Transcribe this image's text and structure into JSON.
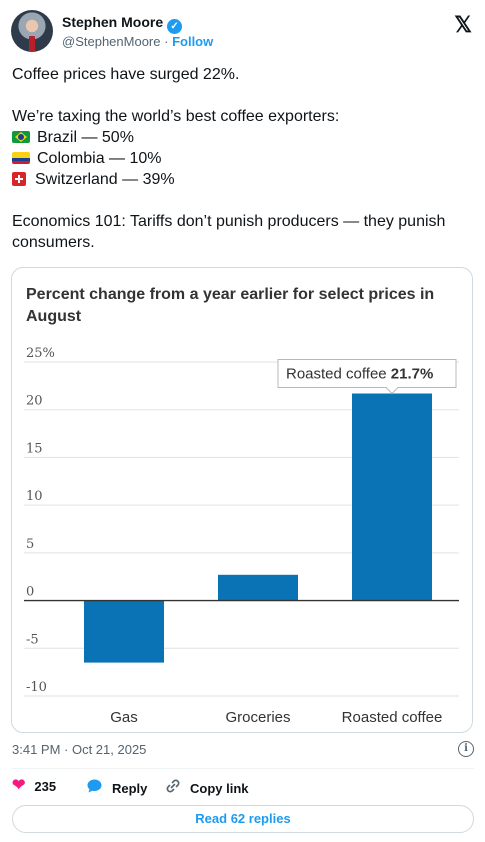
{
  "author": {
    "name": "Stephen Moore",
    "handle": "@StephenMoore",
    "separator": "·",
    "follow_label": "Follow",
    "verified_glyph": "✓"
  },
  "x_logo": "𝕏",
  "tweet": {
    "line1": "Coffee prices have surged 22%.",
    "line2": "We’re taxing the world’s best coffee exporters:",
    "items": [
      {
        "flag": "brazil-flag",
        "text": "Brazil — 50%"
      },
      {
        "flag": "colombia-flag",
        "text": "Colombia — 10%"
      },
      {
        "flag": "switzerland-flag",
        "text": "Switzerland — 39%"
      }
    ],
    "line3": "Economics 101: Tariffs don’t punish producers — they punish consumers."
  },
  "chart_data": {
    "type": "bar",
    "title": "Percent change from a year earlier for select prices in August",
    "categories": [
      "Gas",
      "Groceries",
      "Roasted coffee"
    ],
    "values": [
      -6.5,
      2.7,
      21.7
    ],
    "ylim": [
      -10,
      25
    ],
    "yticks": [
      25,
      20,
      15,
      10,
      5,
      0,
      -5,
      -10
    ],
    "ytick_labels": [
      "25%",
      "20",
      "15",
      "10",
      "5",
      "0",
      "-5",
      "-10"
    ],
    "bar_color": "#0a73b5",
    "grid": true,
    "annotation": {
      "label": "Roasted coffee",
      "value": "21.7%",
      "target": "Roasted coffee"
    }
  },
  "meta": {
    "timestamp": "3:41 PM · Oct 21, 2025",
    "info_glyph": "i"
  },
  "actions": {
    "likes": "235",
    "reply_label": "Reply",
    "copy_label": "Copy link",
    "like_color": "#f91880",
    "reply_color": "#1d9bf0"
  },
  "read_replies": "Read 62 replies"
}
